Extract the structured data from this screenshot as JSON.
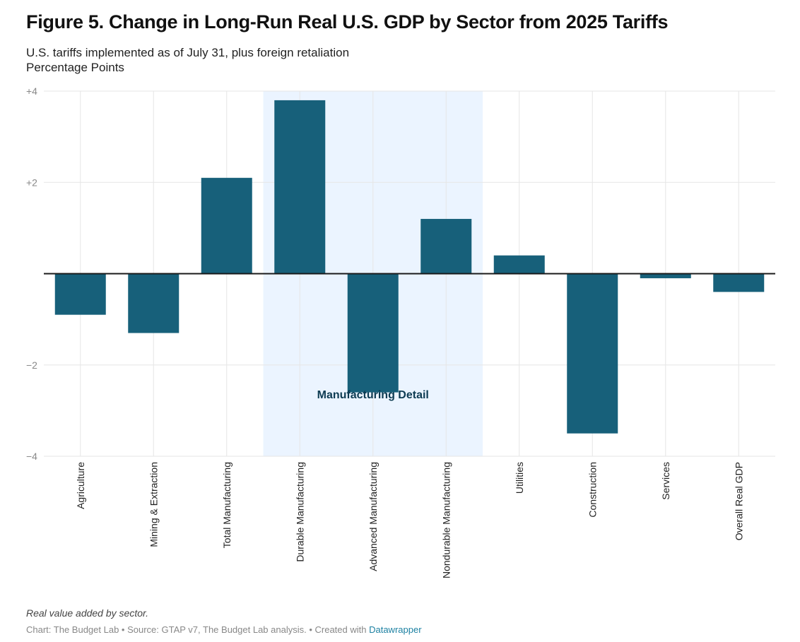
{
  "header": {
    "title": "Figure 5. Change in Long-Run Real U.S. GDP by Sector from 2025 Tariffs",
    "subtitle_line1": "U.S. tariffs implemented as of July 31, plus foreign retaliation",
    "subtitle_line2": "Percentage Points"
  },
  "footer": {
    "notes": "Real value added by sector.",
    "source_text": "Chart: The Budget Lab • Source: GTAP v7, The Budget Lab analysis. • Created with ",
    "source_link": "Datawrapper"
  },
  "colors": {
    "bar": "#17607a",
    "highlight_band": "#ebf4ff",
    "annotation_text": "#0d3b51",
    "gridline": "#e6e6e6",
    "baseline": "#1a1a1a",
    "tick_label": "#888888",
    "category_label": "#222222"
  },
  "chart_data": {
    "type": "bar",
    "categories": [
      "Agriculture",
      "Mining & Extraction",
      "Total Manufacturing",
      "Durable Manufacturing",
      "Advanced Manufacturing",
      "Nondurable Manufacturing",
      "Utilities",
      "Construction",
      "Services",
      "Overall Real GDP"
    ],
    "values": [
      -0.9,
      -1.3,
      2.1,
      3.8,
      -2.6,
      1.2,
      0.4,
      -3.5,
      -0.1,
      -0.4
    ],
    "ylim": [
      -4,
      4
    ],
    "yticks": [
      4,
      2,
      -2,
      -4
    ],
    "ytick_labels": [
      "+4",
      "+2",
      "−2",
      "−4"
    ],
    "grid": true,
    "highlight_range": {
      "from_category": "Durable Manufacturing",
      "to_category": "Nondurable Manufacturing",
      "label": "Manufacturing Detail",
      "label_y": -2.65
    }
  }
}
